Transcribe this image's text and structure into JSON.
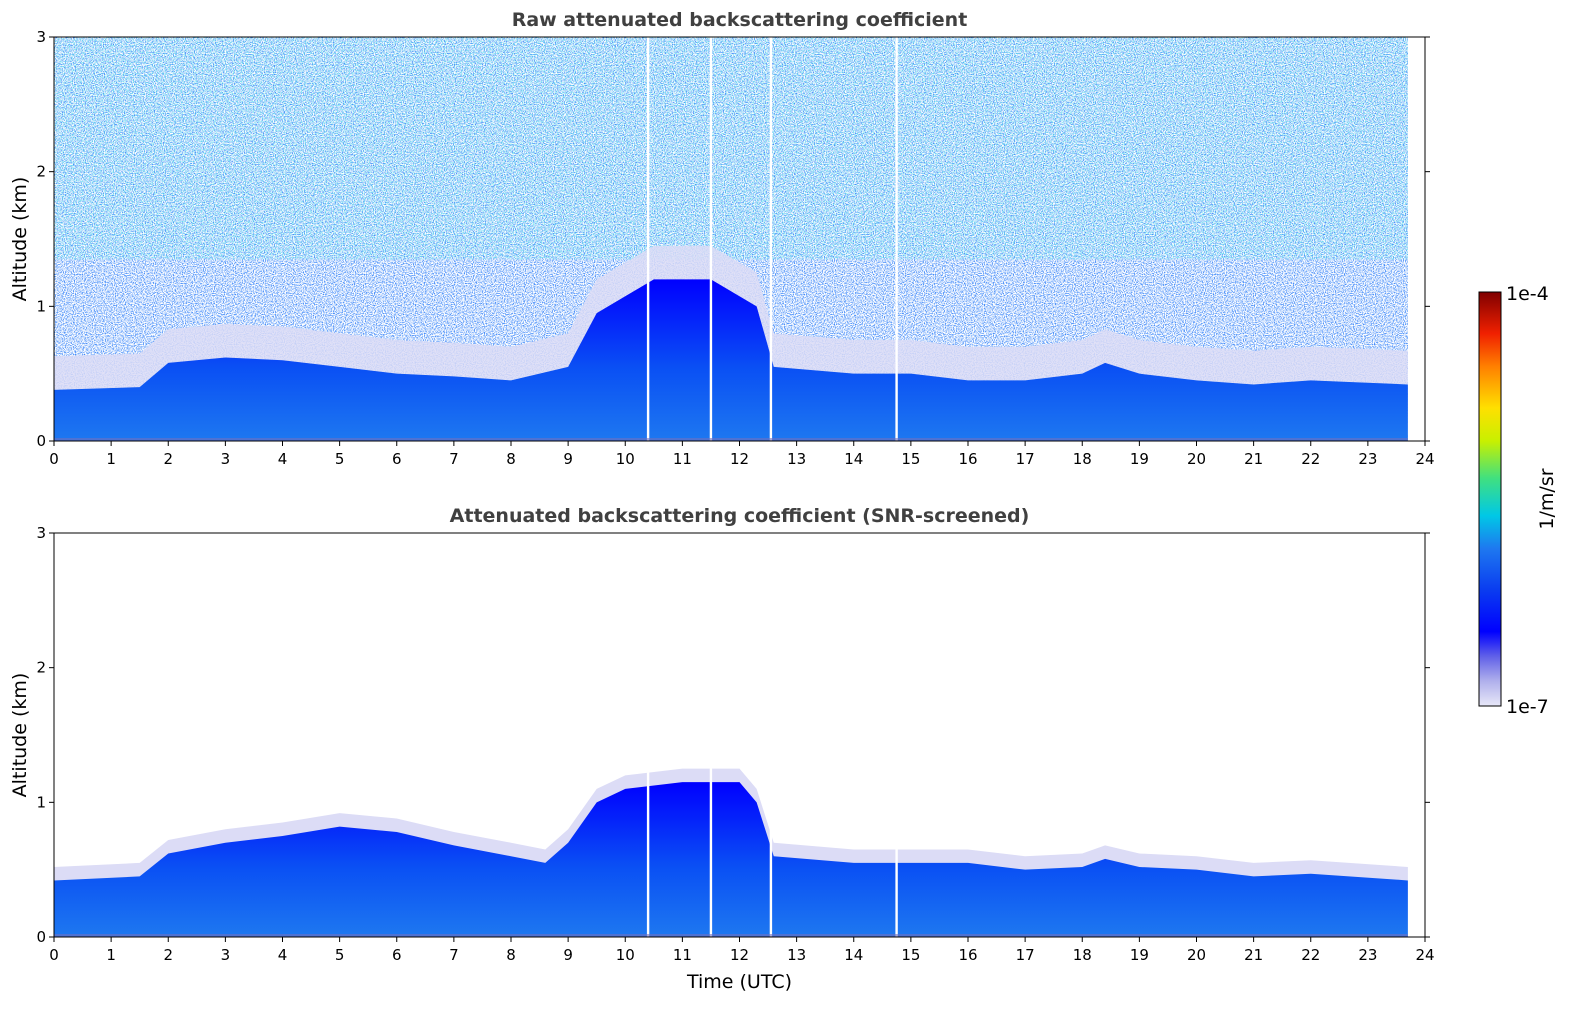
{
  "chart_data": [
    {
      "type": "heatmap",
      "title": "Raw attenuated backscattering coefficient",
      "xlabel": "",
      "ylabel": "Altitude (km)",
      "xlim": [
        0,
        24
      ],
      "ylim": [
        0,
        3
      ],
      "xticks": [
        "0",
        "1",
        "2",
        "3",
        "4",
        "5",
        "6",
        "7",
        "8",
        "9",
        "10",
        "11",
        "12",
        "13",
        "14",
        "15",
        "16",
        "17",
        "18",
        "19",
        "20",
        "21",
        "22",
        "23",
        "24"
      ],
      "yticks": [
        "0",
        "1",
        "2",
        "3"
      ],
      "data_end_time": 23.7,
      "boundary_layer_top_km": [
        [
          0,
          0.38
        ],
        [
          1.5,
          0.4
        ],
        [
          2,
          0.58
        ],
        [
          3,
          0.62
        ],
        [
          4,
          0.6
        ],
        [
          5,
          0.55
        ],
        [
          6,
          0.5
        ],
        [
          7,
          0.48
        ],
        [
          8,
          0.45
        ],
        [
          9,
          0.55
        ],
        [
          9.5,
          0.95
        ],
        [
          10.5,
          1.2
        ],
        [
          11.5,
          1.2
        ],
        [
          12.3,
          1.0
        ],
        [
          12.6,
          0.55
        ],
        [
          14,
          0.5
        ],
        [
          15,
          0.5
        ],
        [
          16,
          0.45
        ],
        [
          17,
          0.45
        ],
        [
          18,
          0.5
        ],
        [
          18.4,
          0.58
        ],
        [
          19,
          0.5
        ],
        [
          20,
          0.45
        ],
        [
          21,
          0.42
        ],
        [
          22,
          0.45
        ],
        [
          23.7,
          0.42
        ]
      ],
      "gap_times": [
        10.4,
        11.5,
        12.55,
        14.75
      ],
      "noise_increasing_with_altitude": true
    },
    {
      "type": "heatmap",
      "title": "Attenuated backscattering coefficient (SNR-screened)",
      "xlabel": "Time (UTC)",
      "ylabel": "Altitude (km)",
      "xlim": [
        0,
        24
      ],
      "ylim": [
        0,
        3
      ],
      "xticks": [
        "0",
        "1",
        "2",
        "3",
        "4",
        "5",
        "6",
        "7",
        "8",
        "9",
        "10",
        "11",
        "12",
        "13",
        "14",
        "15",
        "16",
        "17",
        "18",
        "19",
        "20",
        "21",
        "22",
        "23",
        "24"
      ],
      "yticks": [
        "0",
        "1",
        "2",
        "3"
      ],
      "data_end_time": 23.7,
      "layer_top_km": [
        [
          0,
          0.42
        ],
        [
          1.5,
          0.45
        ],
        [
          2,
          0.62
        ],
        [
          3,
          0.7
        ],
        [
          4,
          0.75
        ],
        [
          5,
          0.82
        ],
        [
          6,
          0.78
        ],
        [
          7,
          0.68
        ],
        [
          8,
          0.6
        ],
        [
          8.6,
          0.55
        ],
        [
          9,
          0.7
        ],
        [
          9.5,
          1.0
        ],
        [
          10,
          1.1
        ],
        [
          11,
          1.15
        ],
        [
          12,
          1.15
        ],
        [
          12.3,
          1.0
        ],
        [
          12.6,
          0.6
        ],
        [
          14,
          0.55
        ],
        [
          15,
          0.55
        ],
        [
          16,
          0.55
        ],
        [
          17,
          0.5
        ],
        [
          18,
          0.52
        ],
        [
          18.4,
          0.58
        ],
        [
          19,
          0.52
        ],
        [
          20,
          0.5
        ],
        [
          21,
          0.45
        ],
        [
          22,
          0.47
        ],
        [
          23.7,
          0.42
        ]
      ],
      "gap_times": [
        10.4,
        11.5,
        12.55,
        14.75
      ]
    }
  ],
  "colorbar": {
    "label": "1/m/sr",
    "max_label": "1e-4",
    "min_label": "1e-7",
    "scale": "log",
    "colors": [
      "#e8e8f8",
      "#b0b0ec",
      "#6060e8",
      "#0000ff",
      "#0a3cf0",
      "#1e78f0",
      "#00c8e6",
      "#40e080",
      "#c8f000",
      "#ffe000",
      "#ff8000",
      "#f02000",
      "#800000"
    ]
  }
}
